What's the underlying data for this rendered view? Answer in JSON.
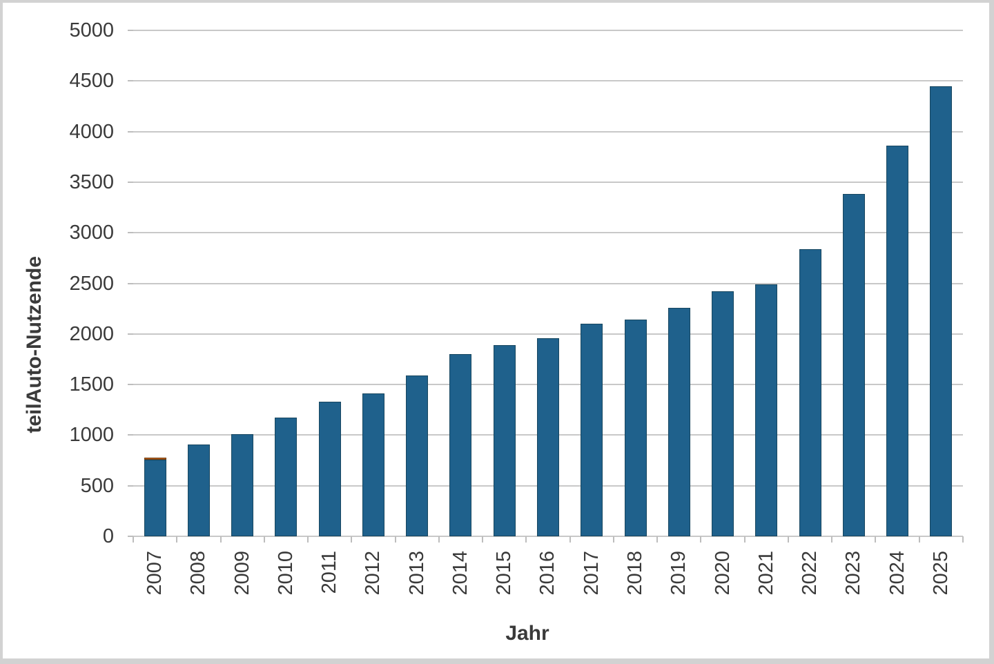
{
  "chart_data": {
    "type": "bar",
    "title": "",
    "xlabel": "Jahr",
    "ylabel": "teilAuto-Nutzende",
    "categories": [
      "2007",
      "2008",
      "2009",
      "2010",
      "2011",
      "2012",
      "2013",
      "2014",
      "2015",
      "2016",
      "2017",
      "2018",
      "2019",
      "2020",
      "2021",
      "2022",
      "2023",
      "2024",
      "2025"
    ],
    "series": [
      {
        "name": "main-blue-series",
        "color": "#1f618c",
        "border": "#17465f",
        "values": [
          755,
          910,
          1010,
          1170,
          1330,
          1415,
          1590,
          1800,
          1890,
          1955,
          2100,
          2140,
          2260,
          2420,
          2490,
          2835,
          3385,
          3860,
          4445
        ]
      },
      {
        "name": "accent-orange-series",
        "color": "#b75b1d",
        "border": "#74400f",
        "values": [
          15,
          0,
          0,
          0,
          0,
          0,
          0,
          0,
          0,
          0,
          0,
          0,
          0,
          0,
          0,
          0,
          0,
          0,
          0
        ]
      }
    ],
    "stacked": true,
    "ylim": [
      0,
      5000
    ],
    "ytick_step": 500,
    "ytick_labels": [
      "0",
      "500",
      "1000",
      "1500",
      "2000",
      "2500",
      "3000",
      "3500",
      "4000",
      "4500",
      "5000"
    ],
    "grid": "horizontal",
    "legend": "none",
    "x_labels_rotated_degrees": -90
  },
  "colors": {
    "bar_fill": "#1f618c",
    "bar_border": "#17465f",
    "accent_orange": "#b75b1d",
    "gridline": "#c8c8c8",
    "tick": "#bdbdbd",
    "text": "#3a3a3a",
    "frame": "#d2d2d2",
    "background": "#ffffff"
  }
}
